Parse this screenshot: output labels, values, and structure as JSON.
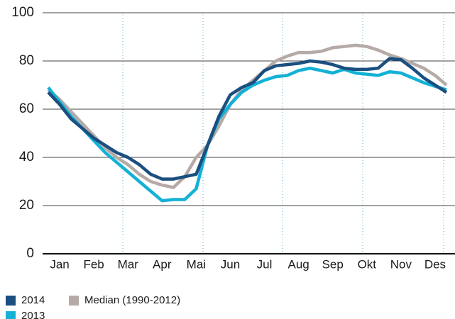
{
  "chart_data": {
    "type": "line",
    "categories": [
      null,
      "Jan",
      null,
      null,
      "Feb",
      null,
      null,
      "Mar",
      null,
      null,
      "Apr",
      null,
      null,
      "Mai",
      null,
      null,
      "Jun",
      null,
      null,
      "Jul",
      null,
      null,
      "Aug",
      null,
      null,
      "Sep",
      null,
      null,
      "Okt",
      null,
      null,
      "Nov",
      null,
      null,
      "Des",
      null
    ],
    "series": [
      {
        "name": "2014",
        "color": "#1a4f80",
        "values": [
          67,
          62,
          56,
          52,
          48,
          45,
          42,
          40,
          37,
          33,
          31,
          31,
          32,
          33,
          45,
          57,
          66,
          69,
          71,
          76,
          78,
          78.5,
          79,
          80,
          79.5,
          78.5,
          77,
          76.5,
          76.5,
          77,
          81,
          80.5,
          77,
          73,
          70,
          67
        ]
      },
      {
        "name": "2013",
        "color": "#13b1d6",
        "values": [
          69,
          63,
          57,
          52,
          47,
          42,
          38,
          34,
          30,
          26,
          22,
          22.5,
          22.5,
          27,
          45,
          56,
          62,
          67,
          70,
          72,
          73.5,
          74,
          76,
          77,
          76,
          75,
          76.5,
          75,
          74.5,
          74,
          75.5,
          75,
          73,
          71,
          69.5,
          68
        ]
      },
      {
        "name": "Median (1990-2012)",
        "color": "#b5aaa6",
        "values": [
          68,
          64,
          59,
          54,
          49,
          44,
          40,
          37,
          33,
          30,
          28.5,
          27.5,
          32,
          40,
          45,
          53,
          62,
          68,
          72,
          76,
          80,
          82,
          83.5,
          83.5,
          84,
          85.5,
          86,
          86.5,
          86,
          84.5,
          82.5,
          81,
          79,
          77,
          74,
          70
        ]
      }
    ],
    "ylim": [
      0,
      100
    ],
    "yticks": [
      0,
      20,
      40,
      60,
      80,
      100
    ],
    "grid": true
  }
}
